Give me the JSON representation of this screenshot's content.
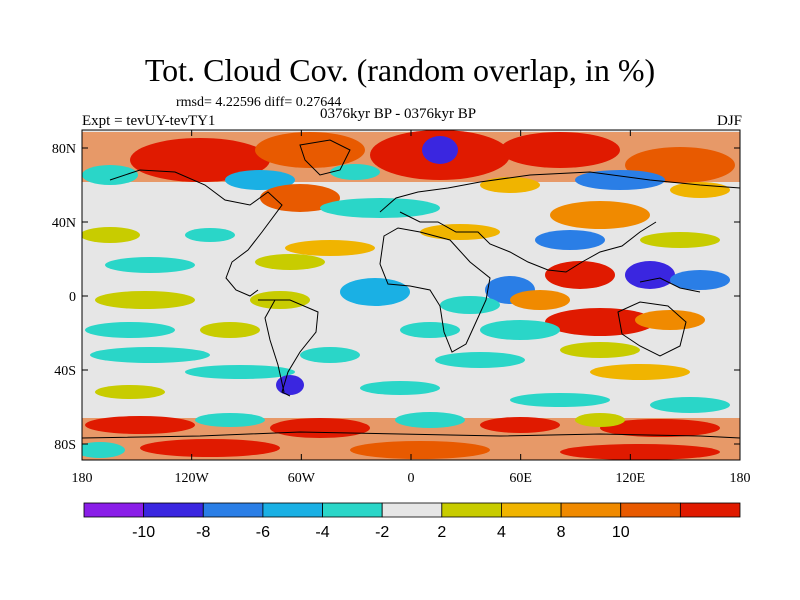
{
  "title": "Tot. Cloud Cov. (random overlap, in %)",
  "stats": "rmsd= 4.22596 diff= 0.27644",
  "experiment": "Expt = tevUY-tevTY1",
  "period": "0376kyr BP - 0376kyr BP",
  "season": "DJF",
  "lat_ticks": [
    "80N",
    "40N",
    "0",
    "40S",
    "80S"
  ],
  "lon_ticks": [
    "180",
    "120W",
    "60W",
    "0",
    "60E",
    "120E",
    "180"
  ],
  "colorbar": {
    "labels": [
      "-10",
      "-8",
      "-6",
      "-4",
      "-2",
      "2",
      "4",
      "8",
      "10"
    ],
    "colors": [
      "#8a1ee8",
      "#3a26e0",
      "#2a7ee6",
      "#1ab0e4",
      "#2ad6c8",
      "#e6e6e6",
      "#c8cc00",
      "#f0b400",
      "#f08a00",
      "#e85a00",
      "#e01a00"
    ]
  },
  "colors": {
    "land_outline": "#000000",
    "neutral": "#e6e6e6"
  }
}
